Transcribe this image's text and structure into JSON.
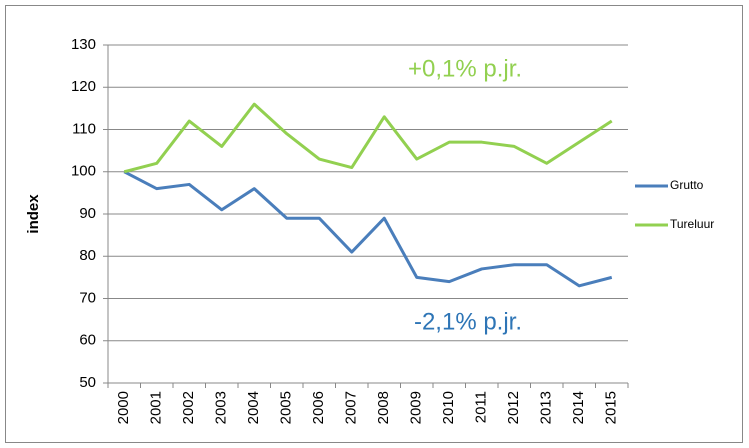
{
  "chart_data": {
    "type": "line",
    "y_label": "index",
    "categories": [
      "2000",
      "2001",
      "2002",
      "2003",
      "2004",
      "2005",
      "2006",
      "2007",
      "2008",
      "2009",
      "2010",
      "2011",
      "2012",
      "2013",
      "2014",
      "2015"
    ],
    "series": [
      {
        "name": "Grutto",
        "color": "#4a7ebb",
        "values": [
          100,
          96,
          97,
          91,
          96,
          89,
          89,
          81,
          89,
          75,
          74,
          77,
          78,
          78,
          73,
          75
        ]
      },
      {
        "name": "Tureluur",
        "color": "#92d050",
        "values": [
          100,
          102,
          112,
          106,
          116,
          109,
          103,
          101,
          113,
          103,
          107,
          107,
          106,
          102,
          107,
          112
        ]
      }
    ],
    "annotations": [
      {
        "text": "+0,1% p.jr.",
        "color": "#92d050"
      },
      {
        "text": "-2,1% p.jr.",
        "color": "#2e75b6"
      }
    ],
    "ylim": [
      50,
      130
    ],
    "yticks": [
      50,
      60,
      70,
      80,
      90,
      100,
      110,
      120,
      130
    ],
    "grid": true,
    "legend": "right"
  }
}
